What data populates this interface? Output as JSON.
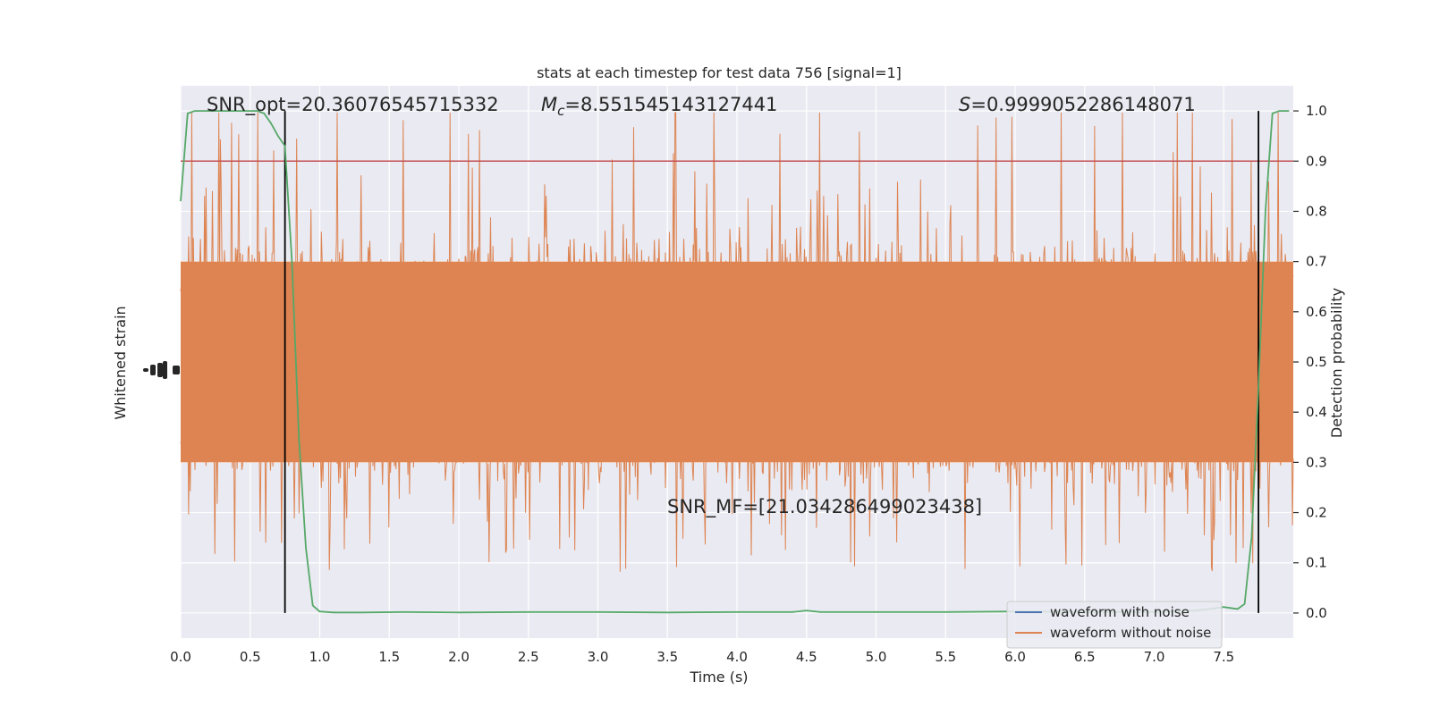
{
  "chart_data": {
    "type": "line",
    "title": "stats at each timestep for test data 756 [signal=1]",
    "xlabel": "Time (s)",
    "ylabel_left": "Whitened strain",
    "ylabel_right": "Detection probability",
    "xlim": [
      0.0,
      8.0
    ],
    "ylim_right": [
      -0.05,
      1.05
    ],
    "x_ticks": [
      "0.0",
      "0.5",
      "1.0",
      "1.5",
      "2.0",
      "2.5",
      "3.0",
      "3.5",
      "4.0",
      "4.5",
      "5.0",
      "5.5",
      "6.0",
      "6.5",
      "7.0",
      "7.5"
    ],
    "y_ticks_right": [
      "0.0",
      "0.1",
      "0.2",
      "0.3",
      "0.4",
      "0.5",
      "0.6",
      "0.7",
      "0.8",
      "0.9",
      "1.0"
    ],
    "grid": true,
    "annotations": {
      "snr_opt": "SNR_opt=20.36076545715332",
      "mc_symbol": "M",
      "mc_subscript": "c",
      "mc_value": "=8.551545143127441",
      "s_symbol": "S",
      "s_value": "=0.9999052286148071",
      "snr_mf": "SNR_MF=[21.034286499023438]"
    },
    "threshold": 0.9,
    "vlines_x": [
      0.75,
      7.75
    ],
    "detection_probability": {
      "x": [
        0.0,
        0.05,
        0.1,
        0.2,
        0.3,
        0.4,
        0.5,
        0.55,
        0.6,
        0.65,
        0.7,
        0.75,
        0.8,
        0.85,
        0.9,
        0.95,
        1.0,
        1.1,
        1.3,
        1.6,
        2.0,
        2.5,
        3.0,
        3.5,
        4.0,
        4.4,
        4.5,
        4.6,
        5.0,
        5.5,
        6.0,
        6.5,
        7.0,
        7.3,
        7.4,
        7.5,
        7.55,
        7.6,
        7.65,
        7.7,
        7.75,
        7.8,
        7.85,
        7.9,
        7.97
      ],
      "y": [
        0.82,
        0.995,
        1.0,
        1.0,
        1.0,
        1.0,
        1.0,
        1.0,
        0.995,
        0.975,
        0.95,
        0.93,
        0.7,
        0.35,
        0.13,
        0.015,
        0.003,
        0.001,
        0.001,
        0.002,
        0.001,
        0.002,
        0.002,
        0.001,
        0.002,
        0.002,
        0.005,
        0.002,
        0.002,
        0.002,
        0.003,
        0.002,
        0.002,
        0.005,
        0.008,
        0.012,
        0.01,
        0.008,
        0.018,
        0.15,
        0.45,
        0.8,
        0.995,
        1.0,
        1.0
      ]
    },
    "series": [
      {
        "name": "waveform with noise",
        "color": "#4c72b0"
      },
      {
        "name": "waveform without noise",
        "color": "#dd8452"
      }
    ],
    "colors": {
      "background": "#eaeaf2",
      "strain_fill": "#dd8452",
      "probability_line": "#55a868",
      "threshold_line": "#c44e52",
      "vline": "#000000"
    }
  }
}
